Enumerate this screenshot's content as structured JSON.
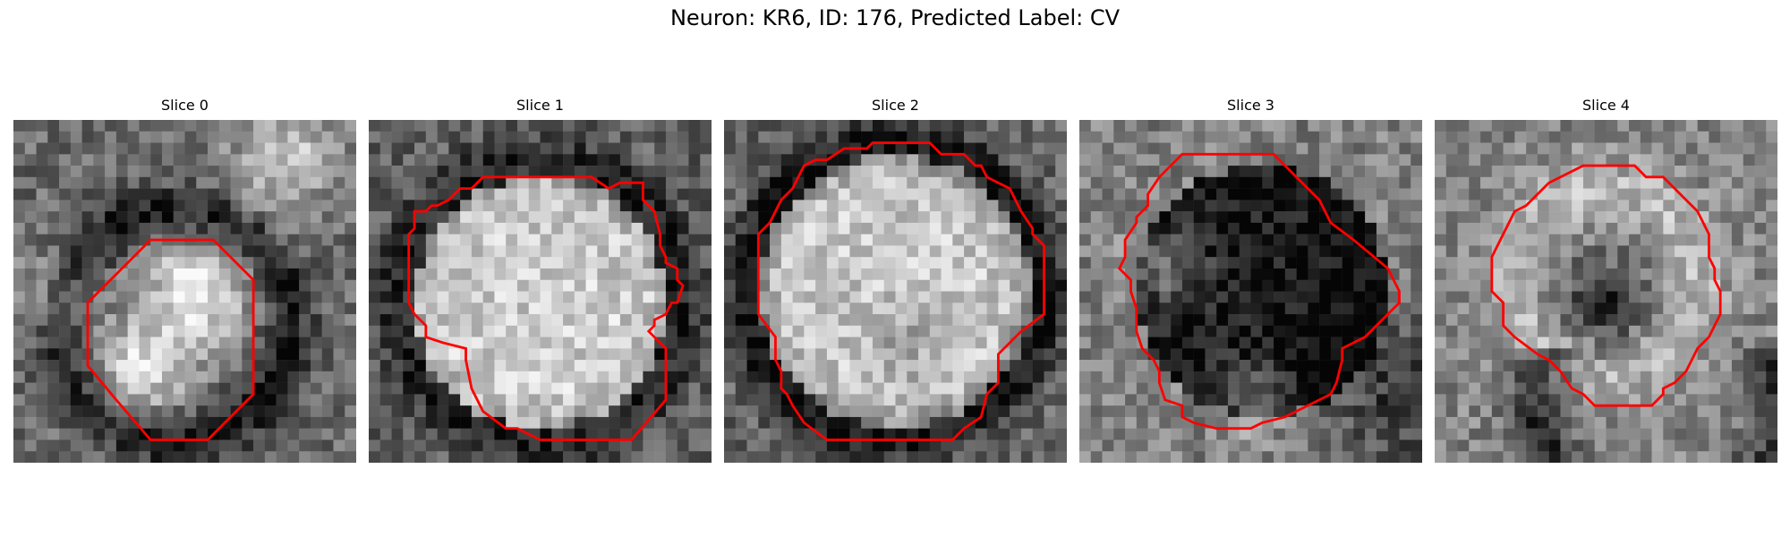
{
  "figure": {
    "title": "Neuron: KR6, ID: 176, Predicted Label: CV"
  },
  "panels": [
    {
      "title": "Slice 0",
      "seed": 11,
      "pattern": "two-cells"
    },
    {
      "title": "Slice 1",
      "seed": 23,
      "pattern": "bright-disc"
    },
    {
      "title": "Slice 2",
      "seed": 37,
      "pattern": "bright-disc-dark-ring"
    },
    {
      "title": "Slice 3",
      "seed": 41,
      "pattern": "dark-interior"
    },
    {
      "title": "Slice 4",
      "seed": 53,
      "pattern": "ring-dark-center"
    }
  ],
  "style": {
    "contour_color": "#ff0000",
    "colormap": "gray"
  }
}
